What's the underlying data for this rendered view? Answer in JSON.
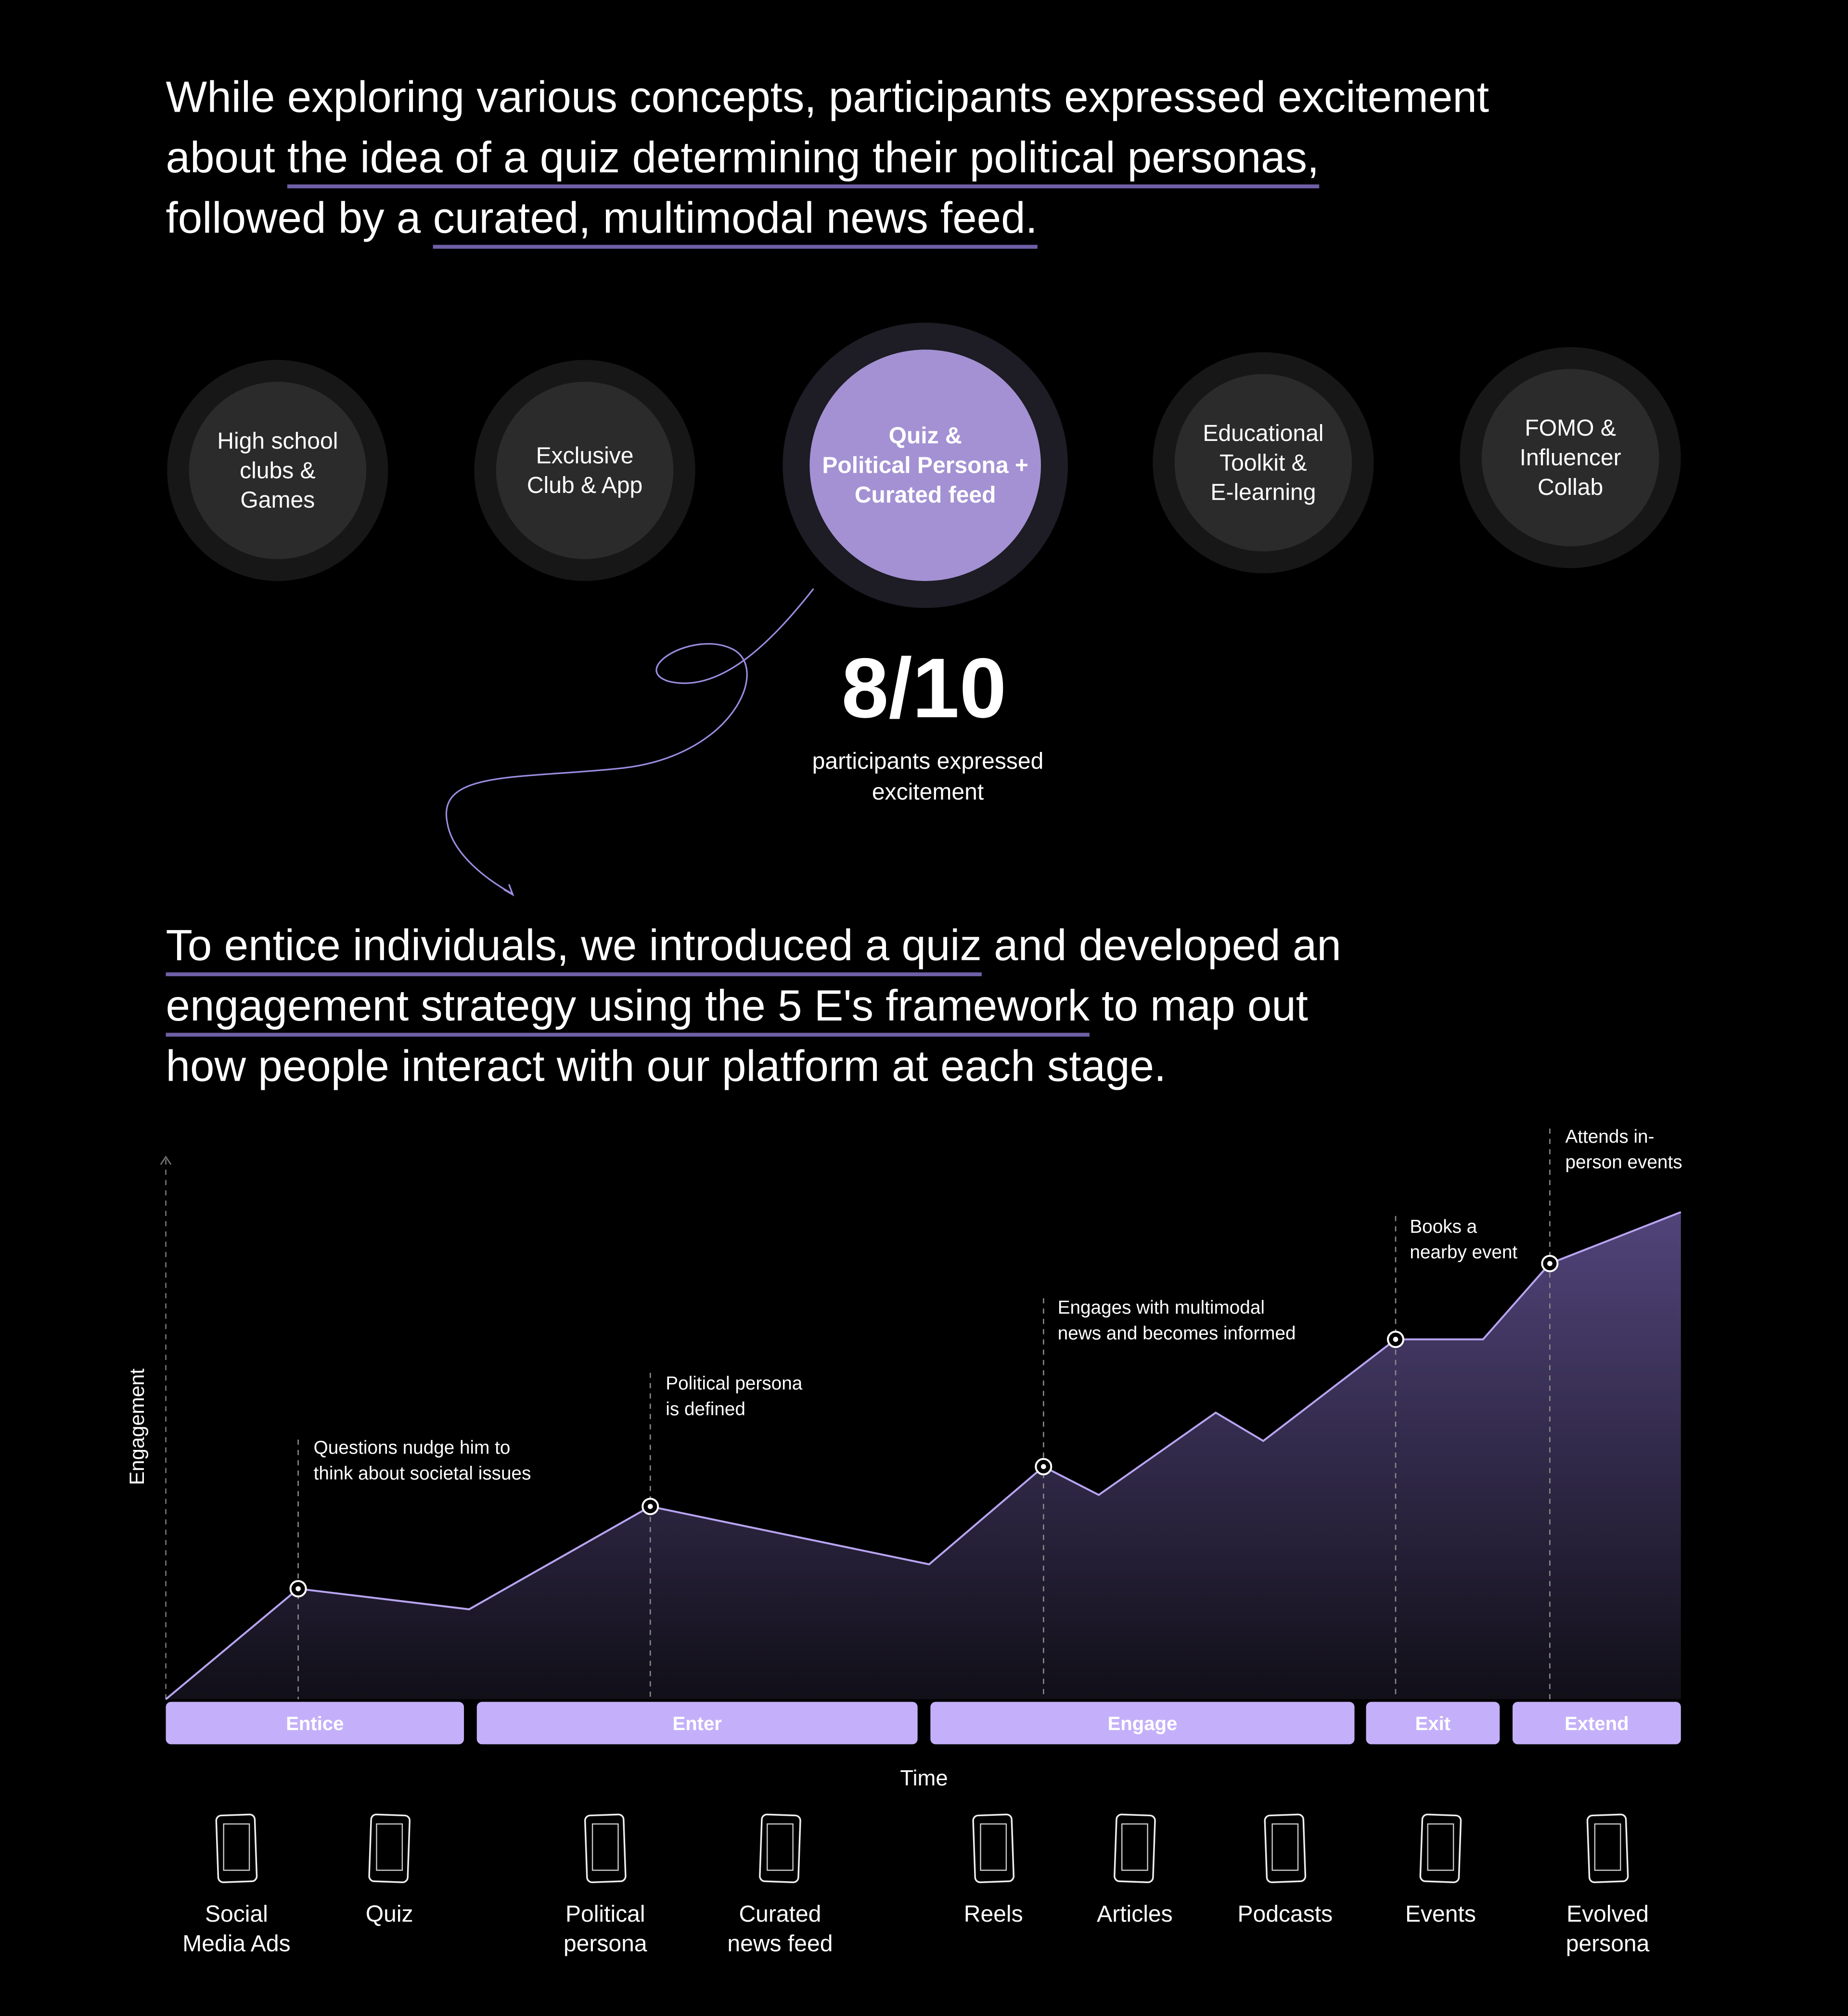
{
  "intro": {
    "lines": [
      [
        {
          "text": "While exploring various concepts, participants expressed excitement",
          "underline": false
        }
      ],
      [
        {
          "text": "about ",
          "underline": false
        },
        {
          "text": "the idea of a quiz determining their political personas,",
          "underline": true
        }
      ],
      [
        {
          "text": "followed by a ",
          "underline": false
        },
        {
          "text": "curated, multimodal news feed.",
          "underline": true
        }
      ]
    ]
  },
  "concepts": [
    {
      "lines": [
        "High school",
        "clubs &",
        "Games"
      ],
      "selected": false
    },
    {
      "lines": [
        "Exclusive",
        "Club & App"
      ],
      "selected": false
    },
    {
      "lines": [
        "Quiz &",
        "Political Persona +",
        "Curated feed"
      ],
      "selected": true
    },
    {
      "lines": [
        "Educational",
        "Toolkit &",
        "E-learning"
      ],
      "selected": false
    },
    {
      "lines": [
        "FOMO &",
        "Influencer",
        "Collab"
      ],
      "selected": false
    }
  ],
  "stat": {
    "value": "8/10",
    "caption": [
      "participants expressed",
      "excitement"
    ]
  },
  "strategy": {
    "lines": [
      [
        {
          "text": "To entice individuals, we introduced a quiz",
          "underline": true
        },
        {
          "text": " and developed an",
          "underline": false
        }
      ],
      [
        {
          "text": "engagement strategy using the 5 E's framework",
          "underline": true
        },
        {
          "text": " to map out",
          "underline": false
        }
      ],
      [
        {
          "text": "how people interact with our platform at each stage.",
          "underline": false
        }
      ]
    ]
  },
  "journey": {
    "y_label": "Engagement",
    "x_label": "Time",
    "annotations": [
      {
        "lines": [
          "Questions nudge him to",
          "think about societal issues"
        ]
      },
      {
        "lines": [
          "Political persona",
          "is defined"
        ]
      },
      {
        "lines": [
          "Engages with multimodal",
          "news and becomes informed"
        ]
      },
      {
        "lines": [
          "Books a",
          "nearby event"
        ]
      },
      {
        "lines": [
          "Attends in-",
          "person events"
        ]
      }
    ],
    "stages": [
      "Entice",
      "Enter",
      "Engage",
      "Exit",
      "Extend"
    ],
    "touchpoints": [
      {
        "lines": [
          "Social",
          "Media Ads"
        ]
      },
      {
        "lines": [
          "Quiz"
        ]
      },
      {
        "lines": [
          "Political",
          "persona"
        ]
      },
      {
        "lines": [
          "Curated",
          "news feed"
        ]
      },
      {
        "lines": [
          "Reels"
        ]
      },
      {
        "lines": [
          "Articles"
        ]
      },
      {
        "lines": [
          "Podcasts"
        ]
      },
      {
        "lines": [
          "Events"
        ]
      },
      {
        "lines": [
          "Evolved",
          "persona"
        ]
      }
    ]
  }
}
